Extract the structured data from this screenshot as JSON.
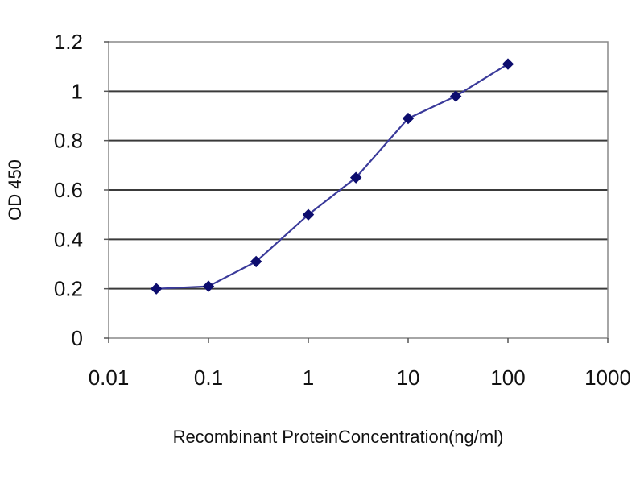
{
  "chart_data": {
    "type": "line",
    "title": "",
    "xlabel": "Recombinant ProteinConcentration(ng/ml)",
    "ylabel": "OD 450",
    "x_scale": "log",
    "xlim": [
      0.01,
      1000
    ],
    "ylim": [
      0,
      1.2
    ],
    "x_ticks": [
      "0.01",
      "0.1",
      "1",
      "10",
      "100",
      "1000"
    ],
    "y_ticks": [
      "0",
      "0.2",
      "0.4",
      "0.6",
      "0.8",
      "1",
      "1.2"
    ],
    "grid": true,
    "legend": "none",
    "series": [
      {
        "x": [
          0.03,
          0.1,
          0.3,
          1,
          3,
          10,
          30,
          100
        ],
        "y": [
          0.2,
          0.21,
          0.31,
          0.5,
          0.65,
          0.89,
          0.98,
          1.11
        ]
      }
    ],
    "colors": {
      "line": "#3a3a9a",
      "marker": "#0d0d6e",
      "grid": "#3a3a3a",
      "plot_border": "#888888",
      "plot_background": "#ffffff"
    }
  }
}
